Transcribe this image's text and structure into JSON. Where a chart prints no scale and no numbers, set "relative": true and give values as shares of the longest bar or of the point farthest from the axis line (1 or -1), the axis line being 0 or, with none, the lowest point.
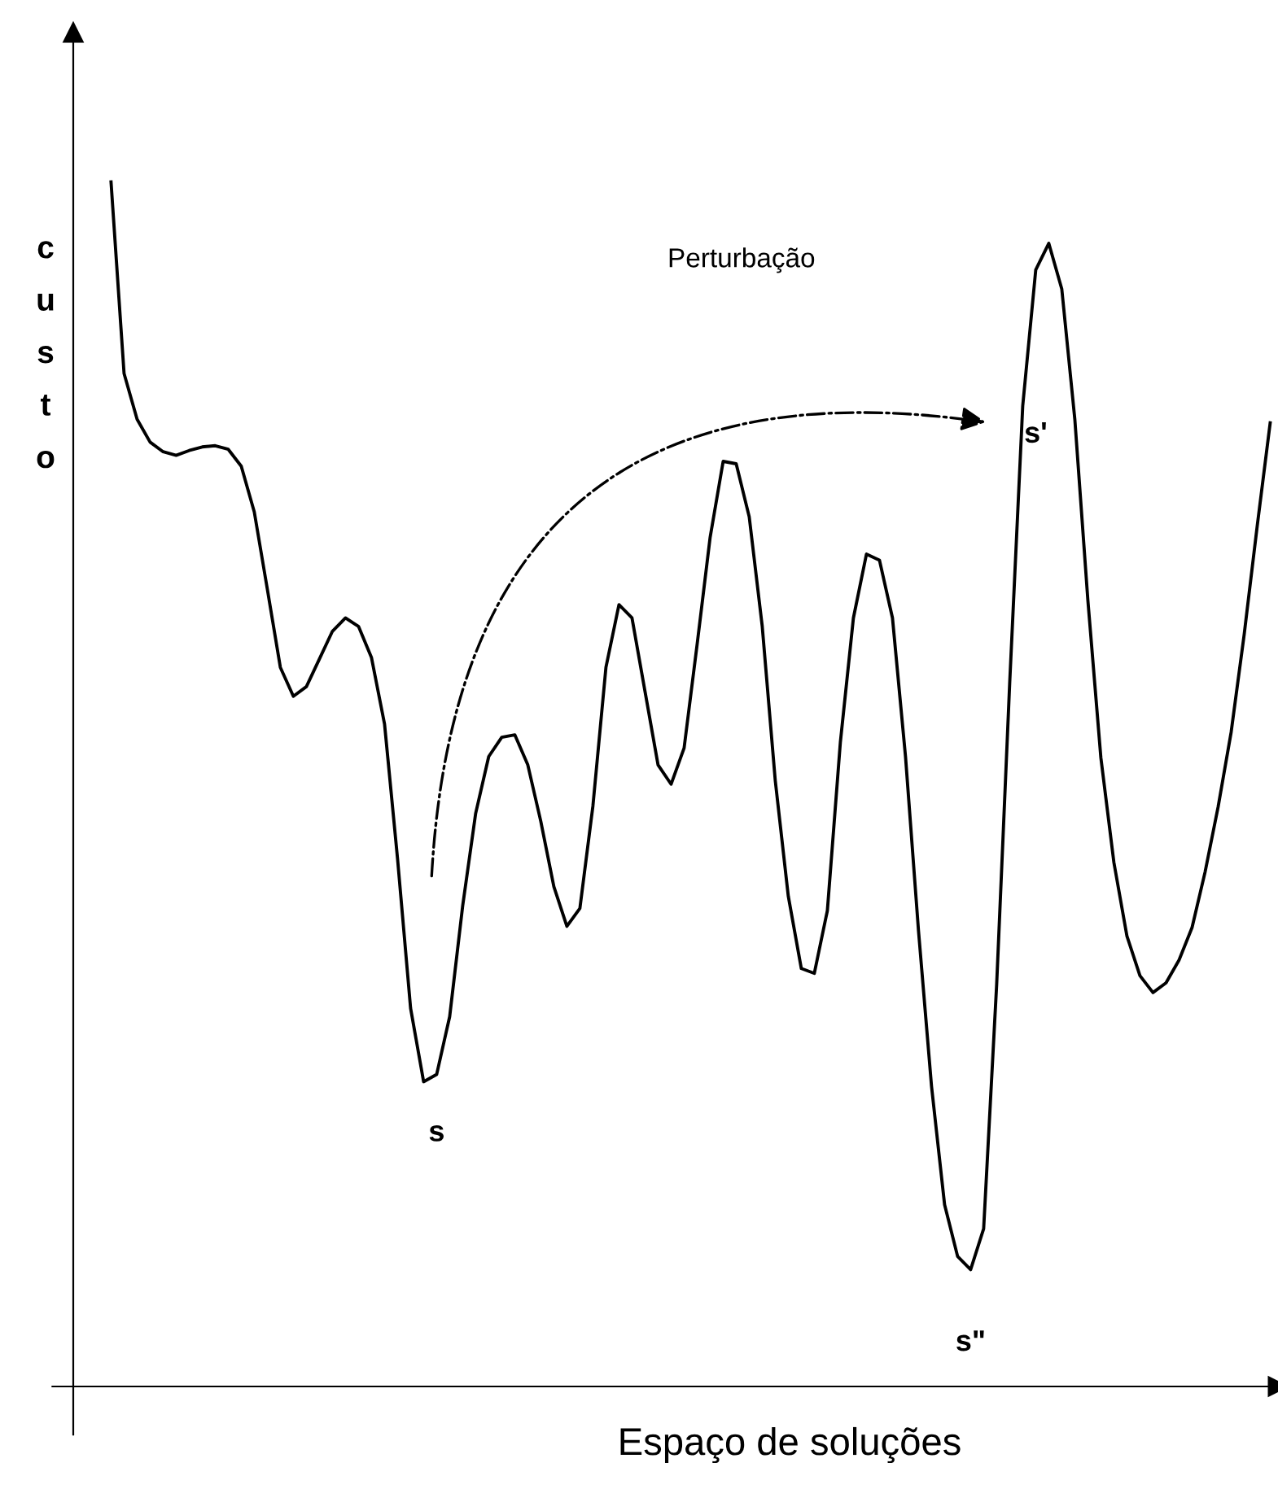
{
  "chart_data": {
    "type": "line",
    "relative": true,
    "xlabel": "Espaço de soluções",
    "ylabel": "custo",
    "color": "#000000",
    "annotations": [
      "Perturbação",
      "s",
      "s'",
      "s\""
    ],
    "categories": [
      null,
      null,
      null,
      null,
      null,
      null,
      null,
      null,
      null,
      null,
      null,
      null,
      null,
      null,
      null,
      null,
      null,
      null,
      null,
      null,
      null,
      null,
      null,
      null,
      null,
      null,
      null,
      null,
      null,
      null,
      null,
      null,
      null,
      null,
      null,
      null,
      null,
      null,
      null,
      null,
      null,
      null,
      null,
      null,
      null,
      null,
      null,
      null,
      null,
      null,
      null,
      null,
      null,
      null,
      null,
      null,
      null,
      null,
      null,
      null,
      null,
      null,
      null,
      null,
      null,
      null,
      null,
      null,
      null,
      null,
      null,
      null,
      null,
      null,
      null,
      null,
      null,
      null,
      null,
      null,
      null,
      null,
      null,
      null,
      null,
      null,
      null,
      null,
      null,
      null
    ],
    "values": [
      1.0,
      0.841,
      0.803,
      0.784,
      0.776,
      0.773,
      0.777,
      0.78,
      0.781,
      0.778,
      0.764,
      0.726,
      0.662,
      0.597,
      0.573,
      0.581,
      0.604,
      0.627,
      0.638,
      0.631,
      0.605,
      0.55,
      0.438,
      0.314,
      0.253,
      0.259,
      0.307,
      0.399,
      0.476,
      0.523,
      0.539,
      0.541,
      0.516,
      0.469,
      0.415,
      0.382,
      0.397,
      0.482,
      0.597,
      0.649,
      0.638,
      0.577,
      0.516,
      0.5,
      0.53,
      0.616,
      0.705,
      0.768,
      0.766,
      0.722,
      0.631,
      0.503,
      0.407,
      0.347,
      0.343,
      0.395,
      0.535,
      0.638,
      0.691,
      0.686,
      0.638,
      0.523,
      0.378,
      0.249,
      0.151,
      0.108,
      0.097,
      0.131,
      0.334,
      0.584,
      0.814,
      0.927,
      0.949,
      0.911,
      0.803,
      0.653,
      0.522,
      0.435,
      0.374,
      0.341,
      0.327,
      0.335,
      0.354,
      0.381,
      0.427,
      0.481,
      0.543,
      0.624,
      0.714,
      0.8
    ]
  }
}
